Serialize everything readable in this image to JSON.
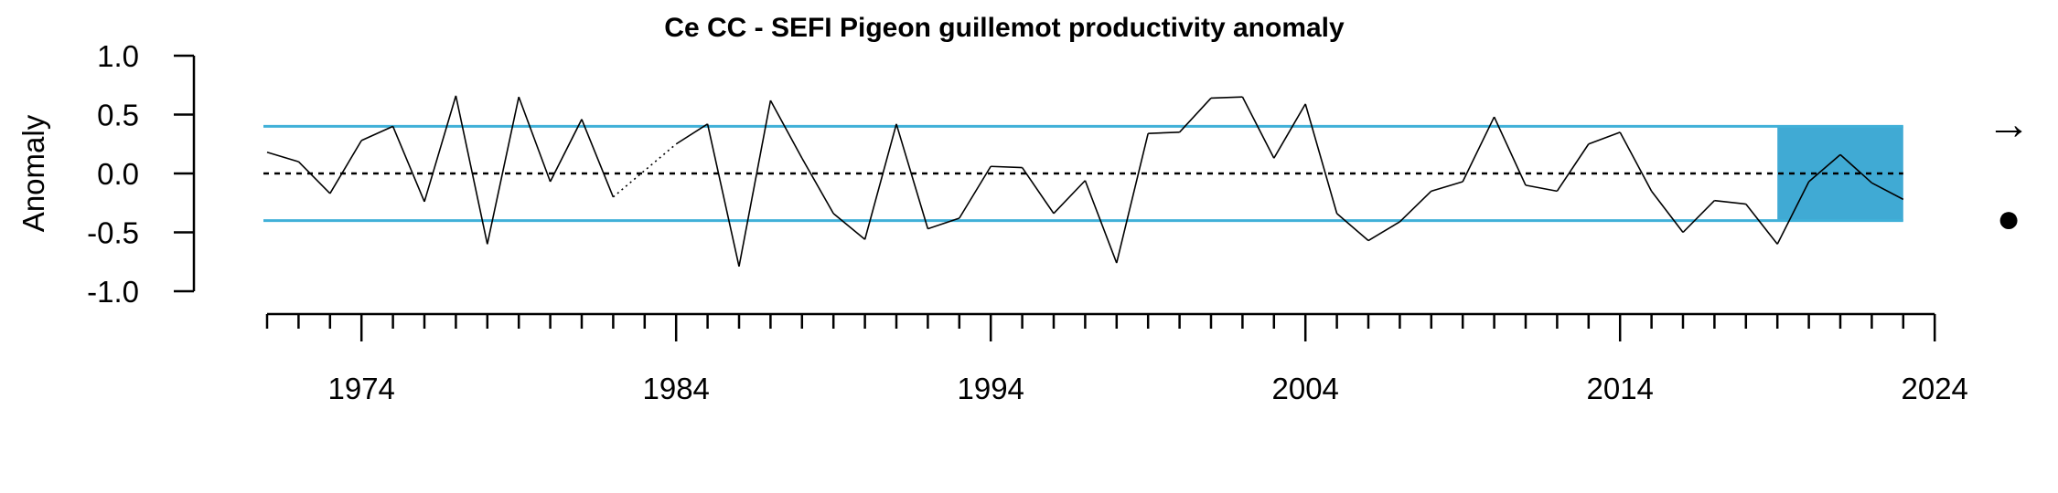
{
  "chart_data": {
    "type": "line",
    "title": "Ce CC - SEFI Pigeon guillemot productivity anomaly",
    "xlabel": "",
    "ylabel": "Anomaly",
    "xlim": [
      1971,
      2024
    ],
    "ylim": [
      -1.0,
      1.0
    ],
    "x_ticks": [
      1974,
      1984,
      1994,
      2004,
      2014,
      2024
    ],
    "y_ticks": [
      "1.0",
      "0.5",
      "0.0",
      "-0.5",
      "-1.0"
    ],
    "y_tick_values": [
      1.0,
      0.5,
      0.0,
      -0.5,
      -1.0
    ],
    "upper_sd": 0.4,
    "lower_sd": -0.4,
    "mean": 0.0,
    "shaded_period": [
      2019,
      2023
    ],
    "colors": {
      "line": "#000000",
      "sd_lines": "#40b0d8",
      "shade": "#40aad4",
      "mean": "#000000"
    },
    "series": [
      {
        "x": [
          1971,
          1972,
          1973,
          1974,
          1975,
          1976,
          1977,
          1978,
          1979,
          1980,
          1981,
          1982,
          1983,
          1984,
          1985,
          1986,
          1987,
          1988,
          1989,
          1990,
          1991,
          1992,
          1993,
          1994,
          1995,
          1996,
          1997,
          1998,
          1999,
          2000,
          2001,
          2002,
          2003,
          2004,
          2005,
          2006,
          2007,
          2008,
          2009,
          2010,
          2011,
          2012,
          2013,
          2014,
          2015,
          2016,
          2017,
          2018,
          2019,
          2020,
          2021,
          2022,
          2023
        ],
        "values": [
          0.18,
          0.1,
          -0.17,
          0.28,
          0.4,
          -0.24,
          0.66,
          -0.6,
          0.65,
          -0.07,
          0.46,
          -0.2,
          null,
          0.25,
          0.42,
          -0.79,
          0.62,
          0.13,
          -0.34,
          -0.56,
          0.42,
          -0.47,
          -0.38,
          0.06,
          0.05,
          -0.34,
          -0.06,
          -0.76,
          0.34,
          0.35,
          0.64,
          0.65,
          0.13,
          0.59,
          -0.34,
          -0.57,
          -0.41,
          -0.15,
          -0.07,
          0.48,
          -0.1,
          -0.15,
          0.25,
          0.35,
          -0.15,
          -0.5,
          -0.23,
          -0.26,
          -0.6,
          -0.07,
          0.16,
          -0.08,
          -0.22
        ]
      }
    ],
    "gap_segment": {
      "x": [
        1982,
        1984
      ],
      "values": [
        -0.2,
        0.25
      ],
      "style": "dotted"
    },
    "trend_symbol": "→",
    "status_symbol": "●"
  }
}
